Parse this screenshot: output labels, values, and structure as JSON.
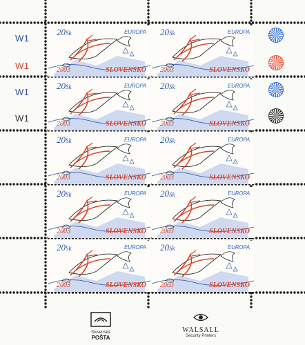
{
  "control_labels": [
    {
      "text": "W1",
      "color": "#2f4fa8"
    },
    {
      "text": "W1",
      "color": "#d8452b"
    },
    {
      "text": "W1",
      "color": "#2f4fa8"
    },
    {
      "text": "W1",
      "color": "#333333"
    }
  ],
  "stamp": {
    "denomination_value": "20",
    "denomination_unit": "Sk",
    "series": "EUROPA",
    "country": "SLOVENSKO",
    "year": "2003"
  },
  "colour_dots": [
    "#3a72d6",
    "#e8553e",
    "#3a72d6",
    "#333333"
  ],
  "printer_left": {
    "top_line": "Slovenská",
    "name": "POŠTA"
  },
  "printer_right": {
    "name": "WALSALL",
    "subtitle": "Security Printers"
  }
}
